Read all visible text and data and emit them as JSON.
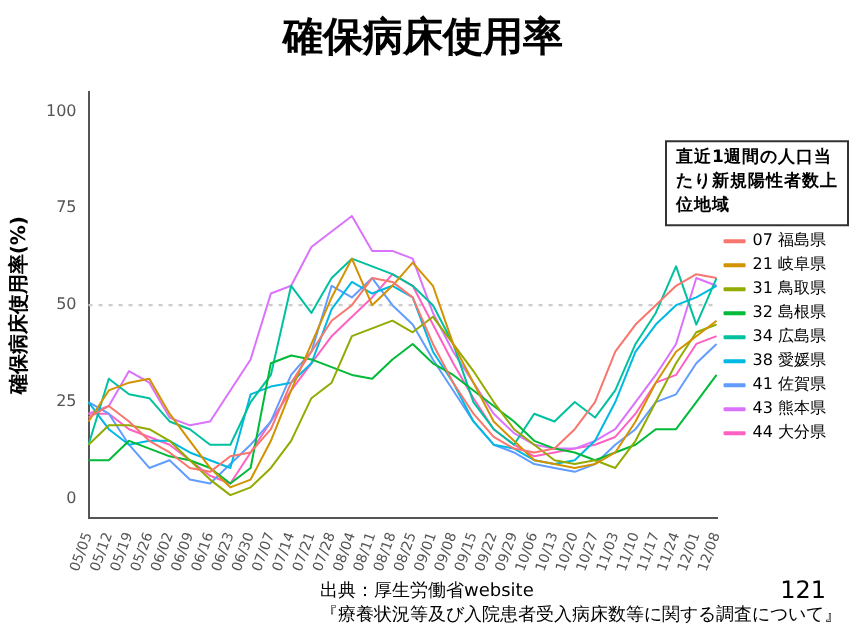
{
  "chart_data": {
    "type": "line",
    "title": "確保病床使用率",
    "ylabel": "確保病床使用率(%)",
    "legend_title": "直近1週間の人口当たり新規陽性者数上位地域",
    "categories": [
      "05/05",
      "05/12",
      "05/19",
      "05/26",
      "06/02",
      "06/09",
      "06/16",
      "06/23",
      "06/30",
      "07/07",
      "07/14",
      "07/21",
      "07/28",
      "08/04",
      "08/11",
      "08/18",
      "08/25",
      "09/01",
      "09/08",
      "09/15",
      "09/22",
      "09/29",
      "10/06",
      "10/13",
      "10/20",
      "10/27",
      "11/03",
      "11/10",
      "11/17",
      "11/24",
      "12/01",
      "12/08"
    ],
    "series": [
      {
        "name": "07 福島県",
        "color": "#f8766d",
        "values": [
          21,
          24,
          20,
          15,
          12,
          8,
          7,
          11,
          12,
          18,
          30,
          38,
          46,
          50,
          57,
          56,
          52,
          40,
          30,
          22,
          16,
          13,
          12,
          13,
          18,
          25,
          38,
          45,
          50,
          55,
          58,
          57
        ]
      },
      {
        "name": "21 岐阜県",
        "color": "#d39200",
        "values": [
          20,
          28,
          30,
          31,
          22,
          15,
          8,
          3,
          5,
          15,
          28,
          40,
          52,
          62,
          50,
          55,
          61,
          55,
          40,
          30,
          20,
          15,
          10,
          9,
          8,
          9,
          12,
          20,
          30,
          38,
          42,
          46
        ]
      },
      {
        "name": "31 鳥取県",
        "color": "#93aa00",
        "values": [
          14,
          19,
          19,
          18,
          15,
          10,
          5,
          1,
          3,
          8,
          15,
          26,
          30,
          42,
          44,
          46,
          43,
          47,
          40,
          33,
          25,
          18,
          14,
          10,
          9,
          10,
          8,
          15,
          25,
          35,
          43,
          45
        ]
      },
      {
        "name": "32 島根県",
        "color": "#00ba38",
        "values": [
          10,
          10,
          15,
          13,
          11,
          10,
          8,
          4,
          8,
          35,
          37,
          36,
          34,
          32,
          31,
          36,
          40,
          35,
          32,
          28,
          24,
          20,
          15,
          13,
          12,
          10,
          12,
          14,
          18,
          18,
          25,
          32
        ]
      },
      {
        "name": "34 広島県",
        "color": "#00c19f",
        "values": [
          14,
          31,
          27,
          26,
          20,
          18,
          14,
          14,
          25,
          32,
          55,
          48,
          57,
          62,
          60,
          58,
          55,
          50,
          40,
          25,
          18,
          14,
          22,
          20,
          25,
          21,
          28,
          40,
          48,
          60,
          45,
          57
        ]
      },
      {
        "name": "38 愛媛県",
        "color": "#00b9e3",
        "values": [
          25,
          18,
          14,
          15,
          15,
          12,
          10,
          8,
          27,
          29,
          30,
          35,
          49,
          56,
          53,
          55,
          52,
          38,
          30,
          20,
          14,
          13,
          10,
          9,
          10,
          15,
          25,
          38,
          45,
          50,
          52,
          55
        ]
      },
      {
        "name": "41 佐賀県",
        "color": "#619cff",
        "values": [
          25,
          22,
          14,
          8,
          10,
          5,
          4,
          9,
          14,
          20,
          32,
          38,
          55,
          52,
          57,
          50,
          45,
          36,
          28,
          20,
          14,
          12,
          9,
          8,
          7,
          9,
          14,
          18,
          25,
          27,
          35,
          40
        ]
      },
      {
        "name": "43 熊本県",
        "color": "#db72fb",
        "values": [
          22,
          24,
          33,
          30,
          21,
          19,
          20,
          28,
          36,
          53,
          55,
          65,
          69,
          73,
          64,
          64,
          62,
          48,
          38,
          30,
          22,
          17,
          14,
          13,
          13,
          15,
          18,
          25,
          32,
          40,
          57,
          55
        ]
      },
      {
        "name": "44 大分県",
        "color": "#ff61c3",
        "values": [
          22,
          22,
          18,
          16,
          14,
          10,
          6,
          4,
          12,
          20,
          28,
          35,
          42,
          47,
          52,
          58,
          55,
          45,
          35,
          26,
          18,
          14,
          11,
          12,
          13,
          14,
          16,
          22,
          30,
          32,
          40,
          42
        ]
      }
    ],
    "ylim": [
      -5,
      105
    ],
    "yticks": [
      0,
      25,
      50,
      75,
      100
    ],
    "grid": false,
    "legend": "right",
    "marker": "none",
    "line_style": "solid",
    "ref_lines": [
      {
        "axis": "y",
        "value": 50,
        "color": "#cccccc",
        "line_style": "dotted"
      }
    ],
    "annotations": [
      "出典：厚生労働省website",
      "『療養状況等及び入院患者受入病床数等に関する調査について』",
      "121"
    ]
  }
}
